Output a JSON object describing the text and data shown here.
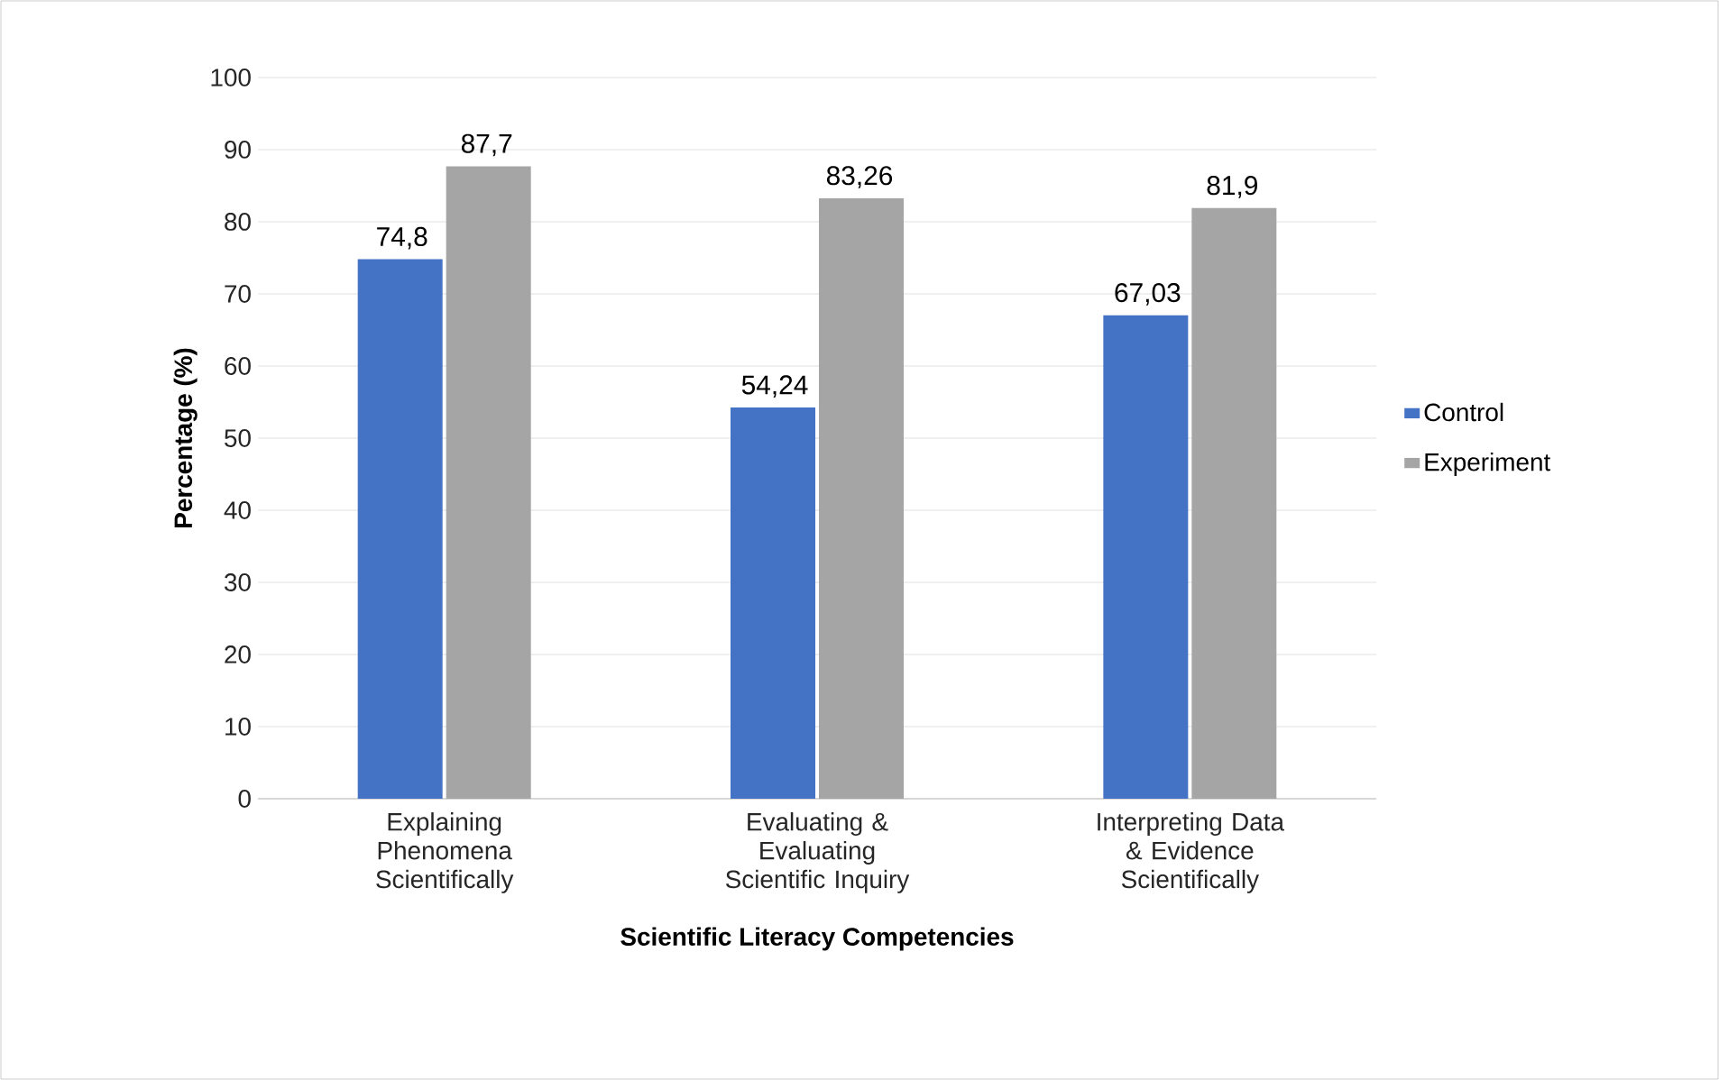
{
  "chart_data": {
    "type": "bar",
    "xlabel": "Scientific Literacy Competencies",
    "ylabel": "Percentage (%)",
    "categories": [
      "Explaining Phenomena Scientifically",
      "Evaluating & Evaluating Scientific Inquiry",
      "Interpreting Data & Evidence Scientifically"
    ],
    "series": [
      {
        "name": "Control",
        "color": "#4472c4",
        "values": [
          74.8,
          54.24,
          67.03
        ],
        "value_labels": [
          "74,8",
          "54,24",
          "67,03"
        ]
      },
      {
        "name": "Experiment",
        "color": "#a5a5a5",
        "values": [
          87.7,
          83.26,
          81.9
        ],
        "value_labels": [
          "87,7",
          "83,26",
          "81,9"
        ]
      }
    ],
    "ylim": [
      0,
      100
    ],
    "yticks": [
      0,
      10,
      20,
      30,
      40,
      50,
      60,
      70,
      80,
      90,
      100
    ],
    "grid": "y",
    "legend": "right"
  }
}
